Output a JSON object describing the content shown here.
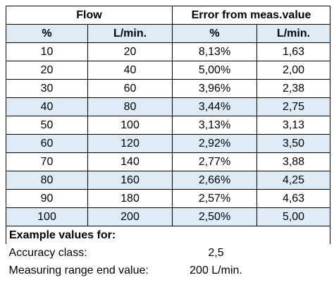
{
  "table": {
    "group_headers": {
      "flow": "Flow",
      "error": "Error from meas.value"
    },
    "sub_headers": [
      "%",
      "L/min.",
      "%",
      "L/min."
    ],
    "rows": [
      [
        "10",
        "20",
        "8,13%",
        "1,63"
      ],
      [
        "20",
        "40",
        "5,00%",
        "2,00"
      ],
      [
        "30",
        "60",
        "3,96%",
        "2,38"
      ],
      [
        "40",
        "80",
        "3,44%",
        "2,75"
      ],
      [
        "50",
        "100",
        "3,13%",
        "3,13"
      ],
      [
        "60",
        "120",
        "2,92%",
        "3,50"
      ],
      [
        "70",
        "140",
        "2,77%",
        "3,88"
      ],
      [
        "80",
        "160",
        "2,66%",
        "4,25"
      ],
      [
        "90",
        "180",
        "2,57%",
        "4,63"
      ],
      [
        "100",
        "200",
        "2,50%",
        "5,00"
      ]
    ]
  },
  "footer": {
    "title": "Example values for:",
    "accuracy_label": "Accuracy class:",
    "accuracy_value": "2,5",
    "range_label": "Measuring range end value:",
    "range_value": "200 L/min."
  }
}
